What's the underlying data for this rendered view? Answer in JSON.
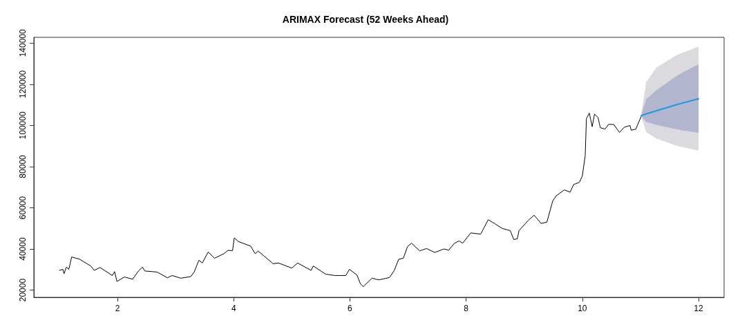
{
  "chart_data": {
    "type": "line",
    "title": "ARIMAX Forecast (52 Weeks Ahead)",
    "xlim": [
      0.56,
      12.44
    ],
    "xticks": [
      2,
      4,
      6,
      8,
      10,
      12
    ],
    "ylim": [
      16500,
      142800
    ],
    "yticks": [
      20000,
      40000,
      60000,
      80000,
      100000,
      120000,
      140000
    ],
    "grid": false,
    "marker": "none",
    "line_style": "solid",
    "series": [
      {
        "color": "#000000",
        "x": [
          1.0,
          1.06,
          1.08,
          1.12,
          1.16,
          1.18,
          1.21,
          1.35,
          1.54,
          1.6,
          1.7,
          1.91,
          1.95,
          1.99,
          2.12,
          2.26,
          2.36,
          2.43,
          2.47,
          2.68,
          2.86,
          2.94,
          3.09,
          3.26,
          3.32,
          3.4,
          3.46,
          3.56,
          3.67,
          3.83,
          3.9,
          3.98,
          4.01,
          4.08,
          4.29,
          4.37,
          4.42,
          4.68,
          4.77,
          5.0,
          5.1,
          5.33,
          5.37,
          5.58,
          5.74,
          5.93,
          5.99,
          6.12,
          6.18,
          6.23,
          6.38,
          6.45,
          6.5,
          6.68,
          6.76,
          6.84,
          6.92,
          6.99,
          7.06,
          7.2,
          7.32,
          7.46,
          7.62,
          7.7,
          7.8,
          7.88,
          7.94,
          8.08,
          8.25,
          8.38,
          8.5,
          8.62,
          8.76,
          8.82,
          8.88,
          8.91,
          9.07,
          9.17,
          9.29,
          9.39,
          9.49,
          9.55,
          9.69,
          9.79,
          9.85,
          9.95,
          10.0,
          10.05,
          10.07,
          10.12,
          10.17,
          10.21,
          10.27,
          10.31,
          10.39,
          10.45,
          10.54,
          10.64,
          10.72,
          10.82,
          10.84,
          10.92,
          11.01
        ],
        "values": [
          29600,
          30100,
          28000,
          31200,
          30100,
          32300,
          36100,
          35000,
          31700,
          29600,
          31000,
          27100,
          29000,
          24200,
          26400,
          25300,
          29300,
          31200,
          29300,
          28800,
          26000,
          27100,
          25800,
          26600,
          28800,
          34500,
          33200,
          38500,
          35500,
          37700,
          39300,
          39200,
          45400,
          43600,
          41400,
          37700,
          39000,
          32800,
          33200,
          30700,
          33200,
          29600,
          31700,
          27800,
          27100,
          27100,
          30100,
          27400,
          23100,
          21700,
          25800,
          25300,
          25000,
          26100,
          29400,
          35000,
          35500,
          41100,
          42800,
          39100,
          40200,
          38300,
          40000,
          39400,
          42800,
          43900,
          42800,
          47800,
          47200,
          54200,
          52200,
          50000,
          48900,
          44600,
          44900,
          48900,
          53900,
          56400,
          52400,
          53000,
          63300,
          65800,
          68700,
          67600,
          71300,
          72400,
          75500,
          85500,
          103300,
          106000,
          99400,
          105500,
          103900,
          98900,
          98200,
          100500,
          100500,
          96600,
          99100,
          100000,
          97700,
          98200,
          104200
        ]
      },
      {
        "color": "#dbdbdf",
        "x": [
          11.01,
          11.1,
          11.28,
          11.64,
          12.0
        ],
        "values": [
          null,
          null,
          null,
          null,
          null
        ],
        "lower": [
          104700,
          96700,
          93600,
          90000,
          87800
        ],
        "upper": [
          104700,
          121100,
          128300,
          134400,
          138300
        ]
      },
      {
        "color": "#b1b5ce",
        "x": [
          11.01,
          11.1,
          11.28,
          11.64,
          12.0
        ],
        "values": [
          null,
          null,
          null,
          null,
          null
        ],
        "lower": [
          104700,
          101700,
          100200,
          98000,
          96400
        ],
        "upper": [
          104700,
          112800,
          117200,
          124400,
          129700
        ]
      },
      {
        "color": "#2297e6",
        "x": [
          11.01,
          11.1,
          11.28,
          11.64,
          12.0
        ],
        "values": [
          104700,
          105600,
          107200,
          110200,
          113000
        ]
      }
    ]
  }
}
